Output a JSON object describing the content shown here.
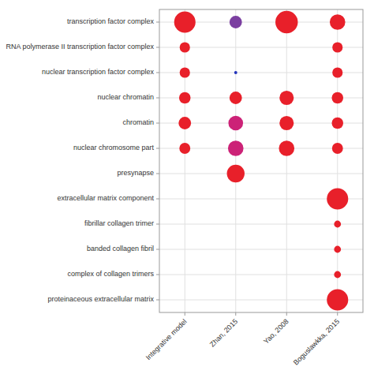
{
  "chart_data": {
    "type": "bubble",
    "categories": [
      "Integrative model",
      "Zhan, 2015",
      "Yao, 2008",
      "Boguslawkka, 2015"
    ],
    "y_categories": [
      "proteinaceous extracellular matrix",
      "complex of collagen trimers",
      "banded collagen fibril",
      "fibrillar collagen trimer",
      "extracellular matrix component",
      "presynapse",
      "nuclear chromosome part",
      "chromatin",
      "nuclear chromatin",
      "nuclear transcription factor complex",
      "RNA polymerase II transcription factor complex",
      "transcription factor complex"
    ],
    "x": [
      "Integrative model",
      "Zhan, 2015",
      "Yao, 2008",
      "Boguslawkka, 2015",
      "Integrative model",
      "Boguslawkka, 2015",
      "Integrative model",
      "Zhan, 2015",
      "Boguslawkka, 2015",
      "Integrative model",
      "Zhan, 2015",
      "Yao, 2008",
      "Boguslawkka, 2015",
      "Integrative model",
      "Zhan, 2015",
      "Yao, 2008",
      "Boguslawkka, 2015",
      "Integrative model",
      "Zhan, 2015",
      "Yao, 2008",
      "Boguslawkka, 2015",
      "Zhan, 2015",
      "Boguslawkka, 2015",
      "Boguslawkka, 2015",
      "Boguslawkka, 2015",
      "Boguslawkka, 2015",
      "Boguslawkka, 2015"
    ],
    "y": [
      "transcription factor complex",
      "transcription factor complex",
      "transcription factor complex",
      "transcription factor complex",
      "RNA polymerase II transcription factor complex",
      "RNA polymerase II transcription factor complex",
      "nuclear transcription factor complex",
      "nuclear transcription factor complex",
      "nuclear transcription factor complex",
      "nuclear chromatin",
      "nuclear chromatin",
      "nuclear chromatin",
      "nuclear chromatin",
      "chromatin",
      "chromatin",
      "chromatin",
      "chromatin",
      "nuclear chromosome part",
      "nuclear chromosome part",
      "nuclear chromosome part",
      "nuclear chromosome part",
      "presynapse",
      "extracellular matrix component",
      "fibrillar collagen trimer",
      "banded collagen fibril",
      "complex of collagen trimers",
      "proteinaceous extracellular matrix"
    ],
    "sizes": [
      380,
      130,
      420,
      200,
      90,
      90,
      90,
      8,
      90,
      110,
      130,
      170,
      110,
      130,
      180,
      170,
      110,
      100,
      200,
      200,
      100,
      260,
      380,
      40,
      40,
      40,
      380
    ],
    "colors": [
      "#e8202a",
      "#7b3fa0",
      "#e8202a",
      "#e8202a",
      "#e8202a",
      "#e8202a",
      "#e8202a",
      "#2233bb",
      "#e8202a",
      "#e8202a",
      "#e8202a",
      "#e8202a",
      "#e8202a",
      "#e8202a",
      "#cc2277",
      "#e8202a",
      "#e8202a",
      "#e8202a",
      "#cc2277",
      "#e8202a",
      "#e8202a",
      "#e8202a",
      "#e8202a",
      "#e8202a",
      "#e8202a",
      "#e8202a",
      "#e8202a"
    ],
    "grid": true
  }
}
